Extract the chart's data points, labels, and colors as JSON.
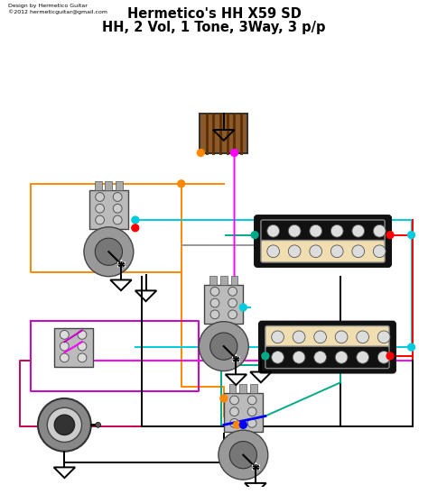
{
  "title_line1": "Hermetico's HH X59 SD",
  "title_line2": "HH, 2 Vol, 1 Tone, 3Way, 3 p/p",
  "credit_line1": "Design by Hermetico Guitar",
  "credit_line2": "©2012 hermeticguitar@gmail.com",
  "bg_color": "#ffffff",
  "title_fontsize": 10.5,
  "credit_fontsize": 4.5,
  "fig_width": 4.74,
  "fig_height": 5.48,
  "dpi": 100,
  "colors": {
    "orange": "#FF8800",
    "cyan": "#00CCDD",
    "red": "#FF0000",
    "magenta": "#FF00FF",
    "purple": "#CC00CC",
    "green": "#00AA88",
    "darkgreen": "#008866",
    "pink": "#CC0055",
    "blue": "#0000FF",
    "black": "#000000",
    "gray": "#888888",
    "lgray": "#BBBBBB",
    "pickup_cream": "#F0DEB0",
    "pickup_black": "#111111",
    "pot_gray": "#AAAAAA",
    "wood_dark": "#6B3A1F",
    "wood_mid": "#9B5E2F",
    "wood_light": "#C8864A"
  }
}
